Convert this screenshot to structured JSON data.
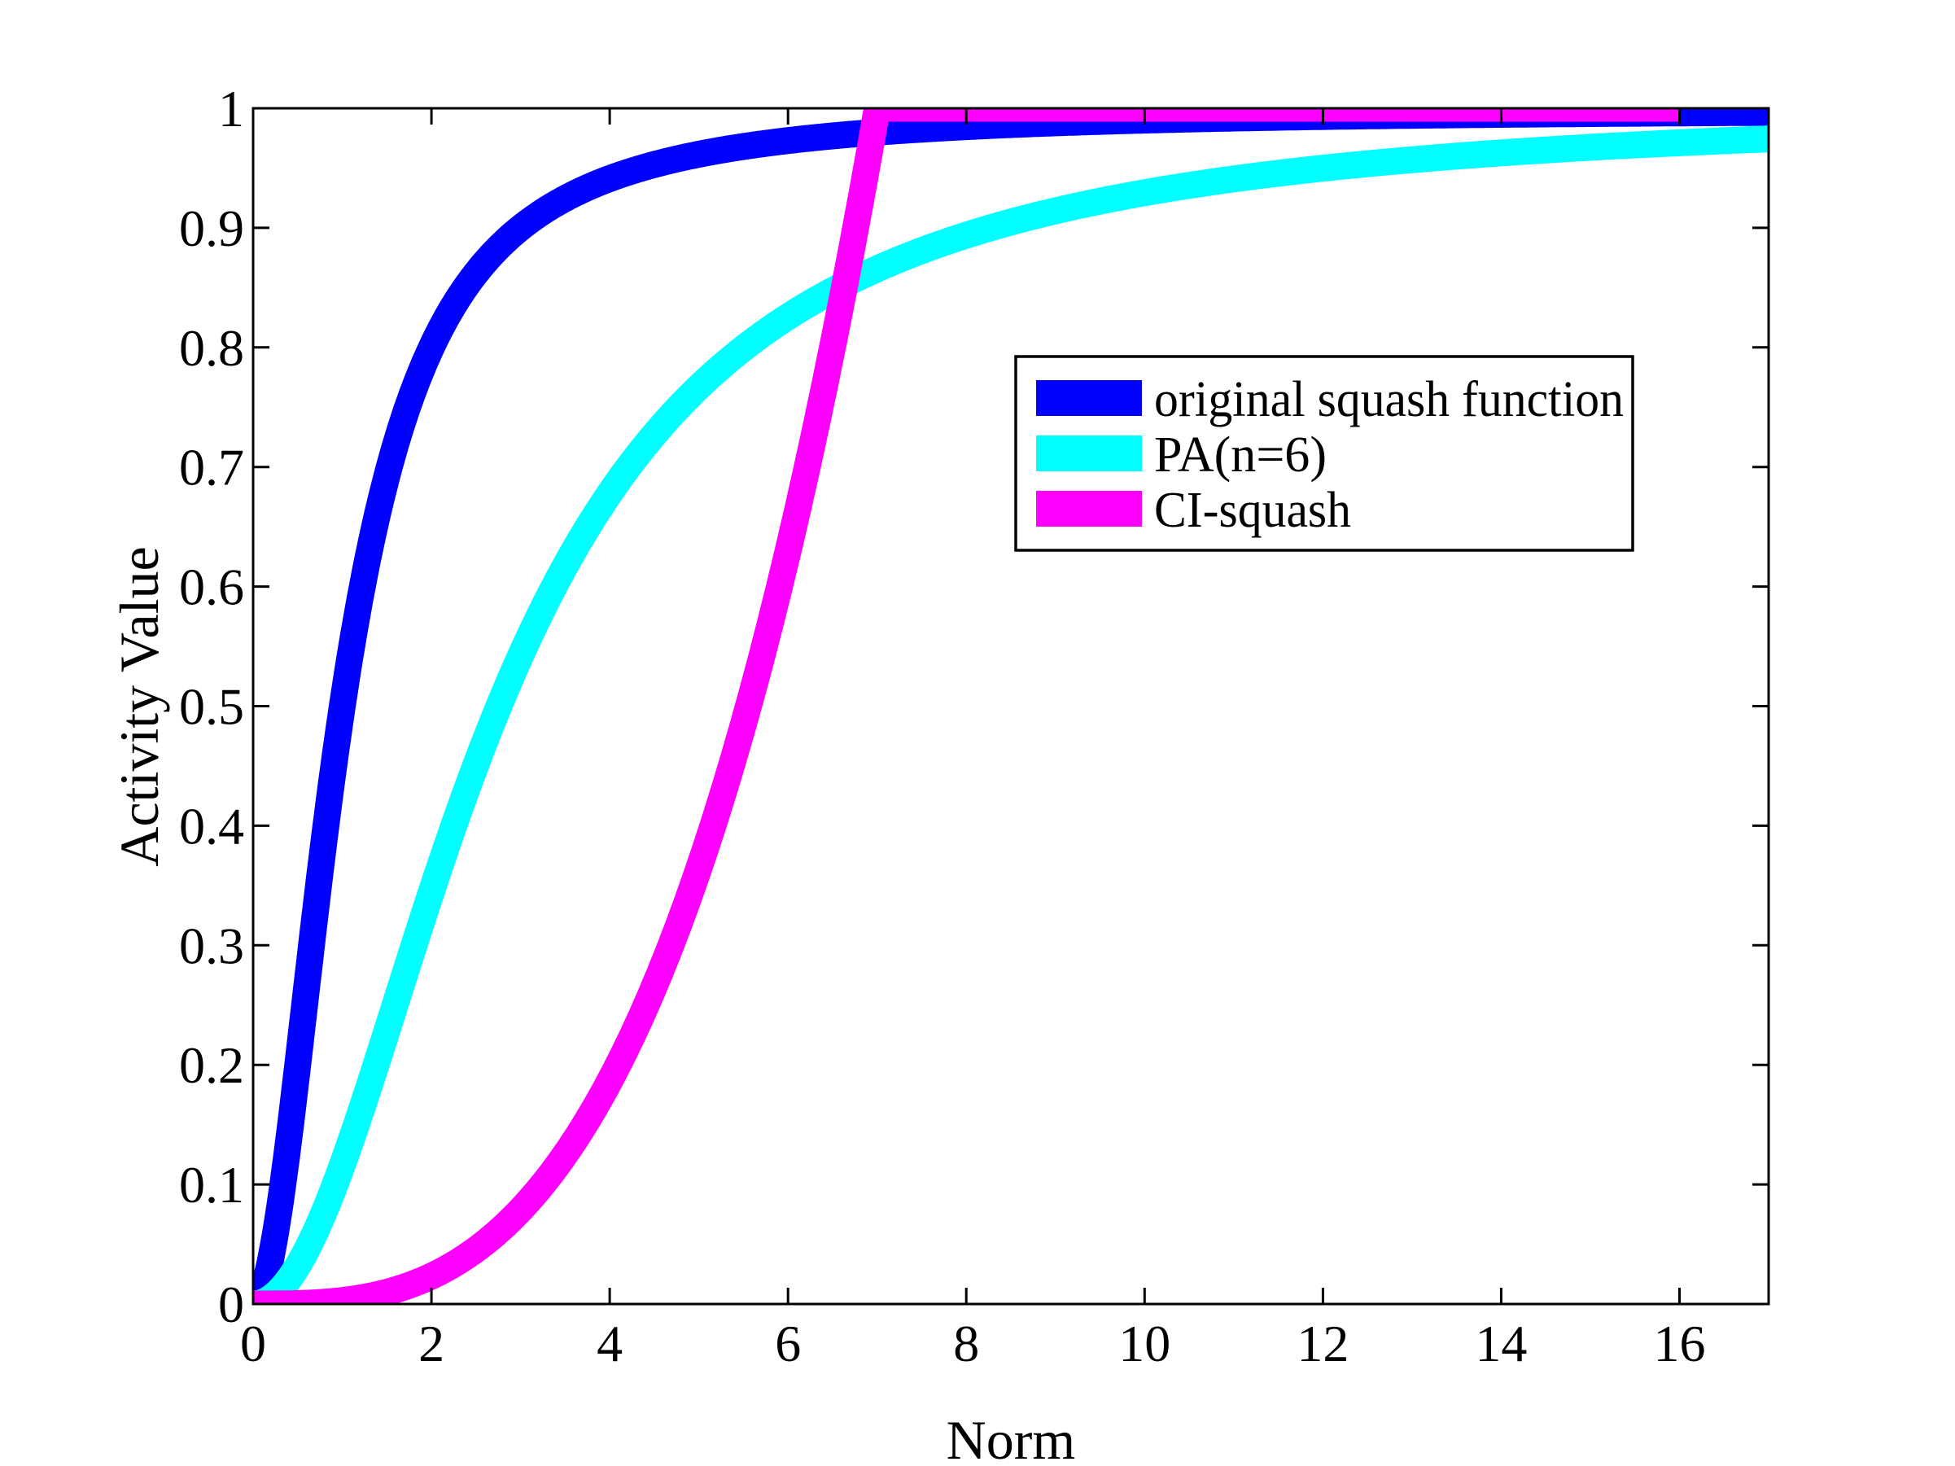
{
  "chart_data": {
    "type": "line",
    "title": "",
    "xlabel": "Norm",
    "ylabel": "Activity Value",
    "xlim": [
      0,
      17
    ],
    "ylim": [
      0,
      1
    ],
    "x_ticks": [
      0,
      2,
      4,
      6,
      8,
      10,
      12,
      14,
      16
    ],
    "x_tick_labels": [
      "0",
      "2",
      "4",
      "6",
      "8",
      "10",
      "12",
      "14",
      "16"
    ],
    "y_ticks": [
      0,
      0.1,
      0.2,
      0.3,
      0.4,
      0.5,
      0.6,
      0.7,
      0.8,
      0.9,
      1
    ],
    "y_tick_labels": [
      "0",
      "0.1",
      "0.2",
      "0.3",
      "0.4",
      "0.5",
      "0.6",
      "0.7",
      "0.8",
      "0.9",
      "1"
    ],
    "grid": false,
    "axis_color": "#000000",
    "background_color": "#ffffff",
    "legend": {
      "position": "inside-upper-right",
      "border_color": "#000000",
      "background_color": "#ffffff"
    },
    "series": [
      {
        "name": "original squash function",
        "color": "#0000FF",
        "formula": "y = x^2 / (1 + x^2)",
        "generator": {
          "kind": "rational",
          "c": 1
        },
        "x_range": [
          0,
          17
        ],
        "anchor_points": {
          "x": [
            0,
            1,
            2,
            3,
            4,
            5,
            6,
            7,
            8,
            9,
            10,
            11,
            12,
            13,
            14,
            15,
            16,
            17
          ],
          "y": [
            0,
            0.5,
            0.8,
            0.9,
            0.941,
            0.962,
            0.973,
            0.98,
            0.985,
            0.988,
            0.99,
            0.992,
            0.993,
            0.994,
            0.995,
            0.996,
            0.996,
            0.997
          ]
        }
      },
      {
        "name": "PA(n=6)",
        "color": "#00FFFF",
        "formula": "y = x^2 / (7.6 + x^2)",
        "generator": {
          "kind": "rational",
          "c": 7.6
        },
        "x_range": [
          0,
          17
        ],
        "anchor_points": {
          "x": [
            0,
            1,
            2,
            3,
            4,
            5,
            6,
            7,
            8,
            9,
            10,
            11,
            12,
            13,
            14,
            15,
            16,
            17
          ],
          "y": [
            0,
            0.116,
            0.345,
            0.542,
            0.678,
            0.767,
            0.826,
            0.866,
            0.894,
            0.914,
            0.929,
            0.941,
            0.95,
            0.957,
            0.963,
            0.967,
            0.971,
            0.974
          ]
        }
      },
      {
        "name": "CI-squash",
        "color": "#FF00FF",
        "formula": "y = min((x/7)^3, 1)",
        "generator": {
          "kind": "power",
          "scale": 7,
          "exp": 3,
          "cap": 1
        },
        "x_range": [
          0,
          16
        ],
        "anchor_points": {
          "x": [
            0,
            1,
            2,
            3,
            4,
            5,
            6,
            7,
            8,
            9,
            10,
            11,
            12,
            13,
            14,
            15,
            16
          ],
          "y": [
            0,
            0.003,
            0.023,
            0.079,
            0.187,
            0.364,
            0.63,
            1,
            1,
            1,
            1,
            1,
            1,
            1,
            1,
            1,
            1
          ]
        }
      }
    ]
  }
}
